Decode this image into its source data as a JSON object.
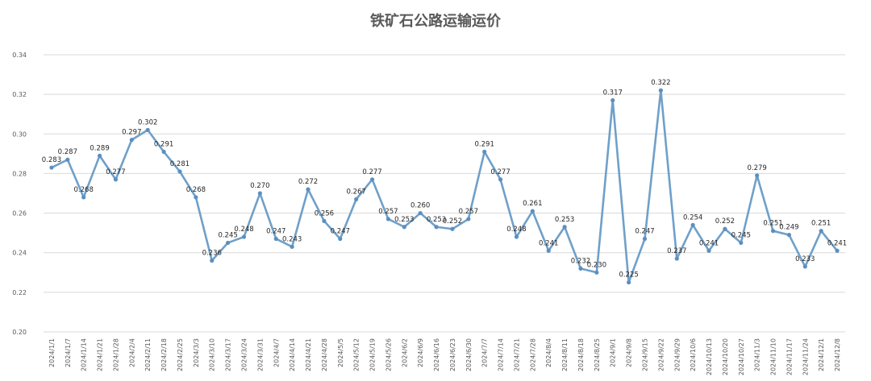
{
  "chart_data": {
    "type": "line",
    "title": "铁矿石公路运输运价",
    "xlabel": "",
    "ylabel": "",
    "ylim": [
      0.2,
      0.34
    ],
    "y_ticks": [
      "0.20",
      "0.22",
      "0.24",
      "0.26",
      "0.28",
      "0.30",
      "0.32",
      "0.34"
    ],
    "grid": true,
    "legend": "none",
    "line_color": "#6fa0c9",
    "marker_color": "#5b8fc0",
    "x": [
      "2024/1/1",
      "2024/1/7",
      "2024/1/14",
      "2024/1/21",
      "2024/1/28",
      "2024/2/4",
      "2024/2/11",
      "2024/2/18",
      "2024/2/25",
      "2024/3/3",
      "2024/3/10",
      "2024/3/17",
      "2024/3/24",
      "2024/3/31",
      "2024/4/7",
      "2024/4/14",
      "2024/4/21",
      "2024/4/28",
      "2024/5/5",
      "2024/5/12",
      "2024/5/19",
      "2024/5/26",
      "2024/6/2",
      "2024/6/9",
      "2024/6/16",
      "2024/6/23",
      "2024/6/30",
      "2024/7/7",
      "2024/7/14",
      "2024/7/21",
      "2024/7/28",
      "2024/8/4",
      "2024/8/11",
      "2024/8/18",
      "2024/8/25",
      "2024/9/1",
      "2024/9/8",
      "2024/9/15",
      "2024/9/22",
      "2024/9/29",
      "2024/10/6",
      "2024/10/13",
      "2024/10/20",
      "2024/10/27",
      "2024/11/3",
      "2024/11/10",
      "2024/11/17",
      "2024/11/24",
      "2024/12/1",
      "2024/12/8"
    ],
    "series": [
      {
        "values": [
          0.283,
          0.287,
          0.268,
          0.289,
          0.277,
          0.297,
          0.302,
          0.291,
          0.281,
          0.268,
          0.236,
          0.245,
          0.248,
          0.27,
          0.247,
          0.243,
          0.272,
          0.256,
          0.247,
          0.267,
          0.277,
          0.257,
          0.253,
          0.26,
          0.253,
          0.252,
          0.257,
          0.291,
          0.277,
          0.248,
          0.261,
          0.241,
          0.253,
          0.232,
          0.23,
          0.317,
          0.225,
          0.247,
          0.322,
          0.237,
          0.254,
          0.241,
          0.252,
          0.245,
          0.279,
          0.251,
          0.249,
          0.233,
          0.251,
          0.241
        ],
        "labels": [
          "0.283",
          "0.287",
          "0.268",
          "0.289",
          "0.277",
          "0.297",
          "0.302",
          "0.291",
          "0.281",
          "0.268",
          "0.236",
          "0.245",
          "0.248",
          "0.270",
          "0.247",
          "0.243",
          "0.272",
          "0.256",
          "0.247",
          "0.267",
          "0.277",
          "0.257",
          "0.253",
          "0.260",
          "0.253",
          "0.252",
          "0.257",
          "0.291",
          "0.277",
          "0.248",
          "0.261",
          "0.241",
          "0.253",
          "0.232",
          "0.230",
          "0.317",
          "0.225",
          "0.247",
          "0.322",
          "0.237",
          "0.254",
          "0.241",
          "0.252",
          "0.245",
          "0.279",
          "0.251",
          "0.249",
          "0.233",
          "0.251",
          "0.241"
        ]
      }
    ]
  }
}
